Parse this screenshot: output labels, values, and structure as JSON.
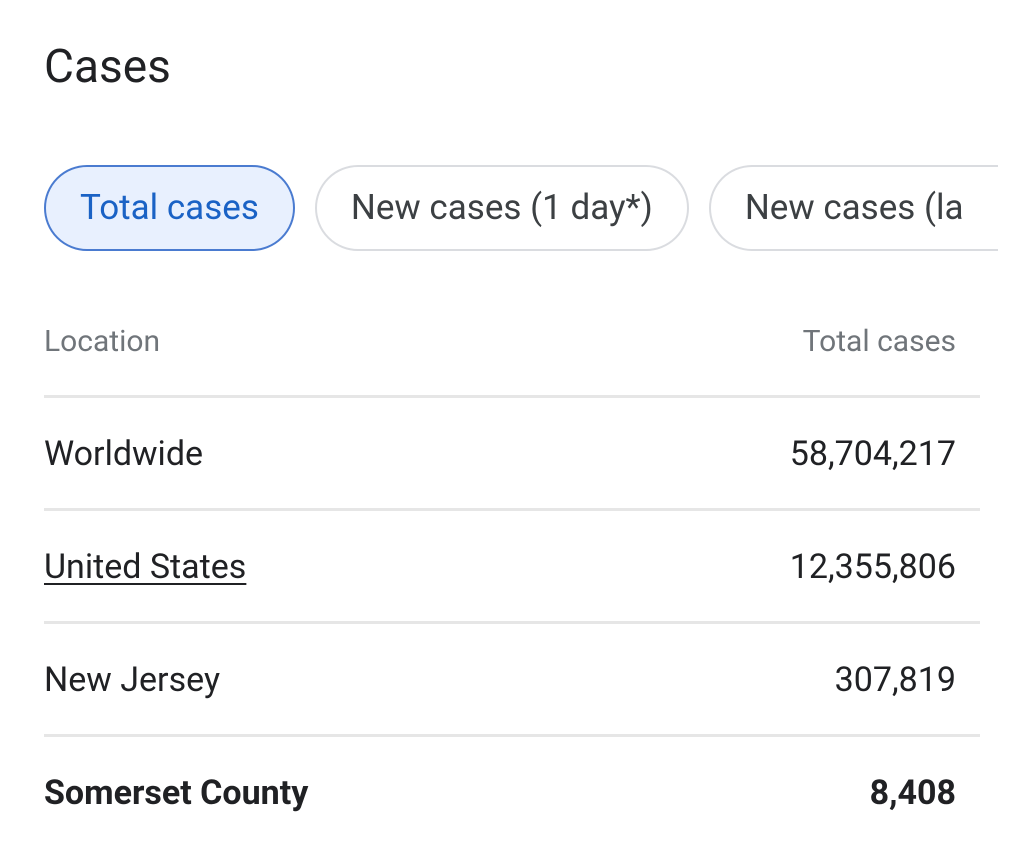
{
  "header": {
    "title": "Cases"
  },
  "tabs": [
    "Total cases",
    "New cases (1 day*)",
    "New cases (la"
  ],
  "table": {
    "columns": [
      "Location",
      "Total cases"
    ],
    "rows": [
      [
        "Worldwide",
        "58,704,217"
      ],
      [
        "United States",
        "12,355,806"
      ],
      [
        "New Jersey",
        "307,819"
      ],
      [
        "Somerset County",
        "8,408"
      ]
    ]
  }
}
